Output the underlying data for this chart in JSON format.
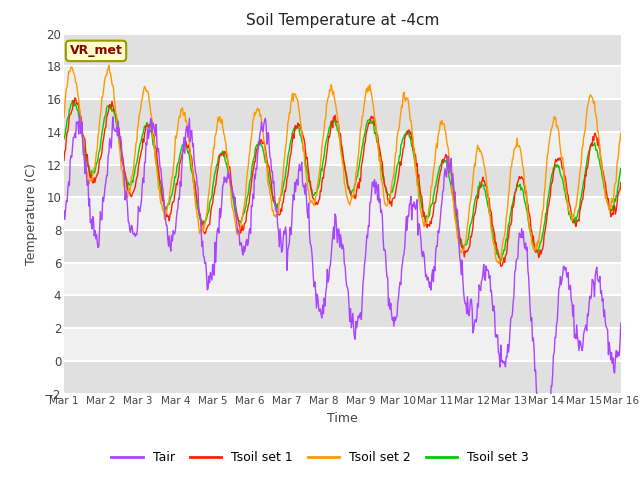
{
  "title": "Soil Temperature at -4cm",
  "xlabel": "Time",
  "ylabel": "Temperature (C)",
  "ylim": [
    -2,
    20
  ],
  "yticks": [
    -2,
    0,
    2,
    4,
    6,
    8,
    10,
    12,
    14,
    16,
    18,
    20
  ],
  "annotation_text": "VR_met",
  "annotation_color": "#8B0000",
  "annotation_bg": "#FFFFCC",
  "annotation_edge": "#999900",
  "fig_bg": "#FFFFFF",
  "plot_bg_light": "#F0F0F0",
  "plot_bg_dark": "#E0E0E0",
  "grid_color": "#FFFFFF",
  "series": {
    "Tair": {
      "color": "#AA44FF",
      "lw": 1.0
    },
    "Tsoil set 1": {
      "color": "#FF2200",
      "lw": 1.0
    },
    "Tsoil set 2": {
      "color": "#FF9900",
      "lw": 1.0
    },
    "Tsoil set 3": {
      "color": "#00CC00",
      "lw": 1.0
    }
  },
  "xtick_labels": [
    "Mar 1",
    "Mar 2",
    "Mar 3",
    "Mar 4",
    "Mar 5",
    "Mar 6",
    "Mar 7",
    "Mar 8",
    "Mar 9",
    "Mar 10",
    "Mar 11",
    "Mar 12",
    "Mar 13",
    "Mar 14",
    "Mar 15",
    "Mar 16"
  ],
  "n_points": 720,
  "days": 15
}
